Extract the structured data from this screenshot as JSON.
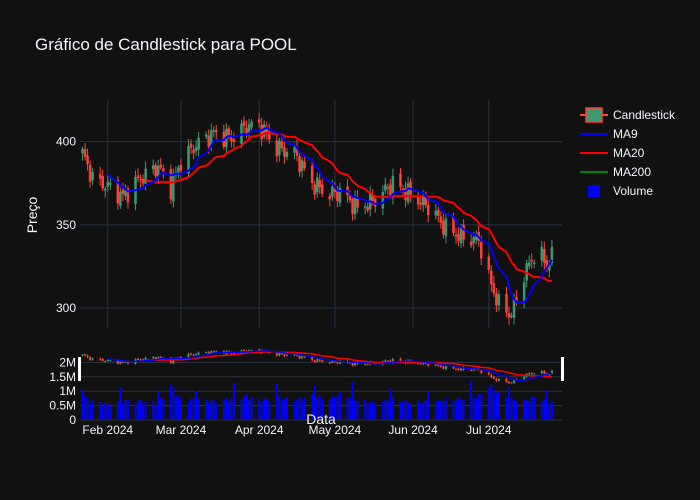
{
  "chart_data": {
    "type": "candlestick",
    "title": "Gráfico de Candlestick para POOL",
    "xlabel": "Data",
    "ylabel": "Preço",
    "ylim": [
      288,
      425
    ],
    "volume_ylim": [
      0,
      2500000
    ],
    "xlim": [
      "2024-01-21",
      "2024-07-30"
    ],
    "x_ticks": [
      {
        "date": "2024-02-01",
        "label": "Feb 2024"
      },
      {
        "date": "2024-03-01",
        "label": "Mar 2024"
      },
      {
        "date": "2024-04-01",
        "label": "Apr 2024"
      },
      {
        "date": "2024-05-01",
        "label": "May 2024"
      },
      {
        "date": "2024-06-01",
        "label": "Jun 2024"
      },
      {
        "date": "2024-07-01",
        "label": "Jul 2024"
      }
    ],
    "y_ticks": [
      {
        "value": 300,
        "label": "300"
      },
      {
        "value": 350,
        "label": "350"
      },
      {
        "value": 400,
        "label": "400"
      }
    ],
    "volume_ticks": [
      {
        "value": 0,
        "label": "0"
      },
      {
        "value": 500000,
        "label": "0.5M"
      },
      {
        "value": 1000000,
        "label": "1M"
      },
      {
        "value": 1500000,
        "label": "1.5M"
      },
      {
        "value": 2000000,
        "label": "2M"
      }
    ],
    "legend": {
      "position": "right",
      "items": [
        {
          "name": "Candlestick",
          "kind": "candle"
        },
        {
          "name": "MA9",
          "kind": "line",
          "color": "#0000ff"
        },
        {
          "name": "MA20",
          "kind": "line",
          "color": "#ff0000"
        },
        {
          "name": "MA200",
          "kind": "line",
          "color": "#008000"
        },
        {
          "name": "Volume",
          "kind": "square",
          "color": "#0000ff"
        }
      ]
    },
    "colors": {
      "increasing": "#3d9970",
      "decreasing": "#ff4136",
      "grid": "#283442",
      "volume": "#0000ff"
    },
    "anchors": [
      [
        "2024-01-22",
        393,
        900000
      ],
      [
        "2024-01-26",
        378,
        700000
      ],
      [
        "2024-02-01",
        373,
        600000
      ],
      [
        "2024-02-07",
        367,
        750000
      ],
      [
        "2024-02-14",
        378,
        700000
      ],
      [
        "2024-02-21",
        385,
        650000
      ],
      [
        "2024-02-26",
        372,
        1300000
      ],
      [
        "2024-03-01",
        388,
        750000
      ],
      [
        "2024-03-07",
        398,
        800000
      ],
      [
        "2024-03-14",
        405,
        700000
      ],
      [
        "2024-03-21",
        402,
        800000
      ],
      [
        "2024-03-27",
        409,
        900000
      ],
      [
        "2024-04-01",
        410,
        750000
      ],
      [
        "2024-04-08",
        396,
        850000
      ],
      [
        "2024-04-15",
        393,
        750000
      ],
      [
        "2024-04-22",
        375,
        900000
      ],
      [
        "2024-04-29",
        368,
        800000
      ],
      [
        "2024-05-03",
        370,
        1000000
      ],
      [
        "2024-05-10",
        360,
        750000
      ],
      [
        "2024-05-17",
        365,
        650000
      ],
      [
        "2024-05-24",
        375,
        800000
      ],
      [
        "2024-05-31",
        368,
        650000
      ],
      [
        "2024-06-07",
        361,
        700000
      ],
      [
        "2024-06-14",
        348,
        750000
      ],
      [
        "2024-06-21",
        342,
        800000
      ],
      [
        "2024-06-27",
        341,
        900000
      ],
      [
        "2024-07-01",
        318,
        1300000
      ],
      [
        "2024-07-05",
        302,
        1000000
      ],
      [
        "2024-07-10",
        296,
        800000
      ],
      [
        "2024-07-15",
        320,
        700000
      ],
      [
        "2024-07-20",
        335,
        900000
      ],
      [
        "2024-07-24",
        326,
        700000
      ],
      [
        "2024-07-28",
        336,
        600000
      ]
    ]
  }
}
